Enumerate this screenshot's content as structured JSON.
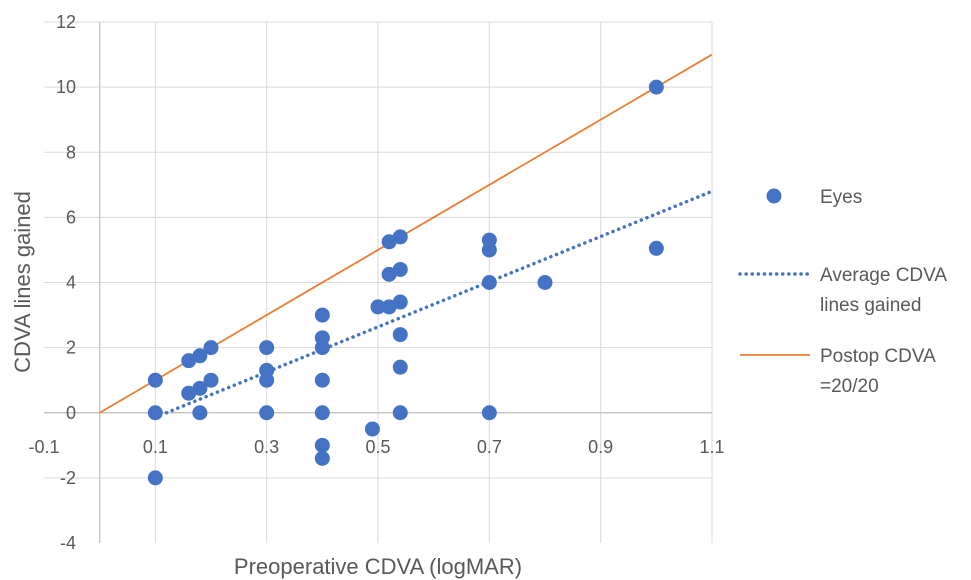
{
  "chart_data": {
    "type": "scatter",
    "xlabel": "Preoperative CDVA (logMAR)",
    "ylabel": "CDVA lines gained",
    "xlim": [
      -0.1,
      1.1
    ],
    "ylim": [
      -4,
      12
    ],
    "x_tick_labels": [
      "-0.1",
      "0.1",
      "0.3",
      "0.5",
      "0.7",
      "0.9",
      "1.1"
    ],
    "y_tick_labels": [
      "-4",
      "-2",
      "0",
      "2",
      "4",
      "6",
      "8",
      "10",
      "12"
    ],
    "x_gridlines": [
      0.1,
      0.3,
      0.5,
      0.7,
      0.9,
      1.1
    ],
    "y_gridlines": [
      -2,
      0,
      2,
      4,
      6,
      8,
      10,
      12
    ],
    "grid": true,
    "legend_position": "right",
    "series": [
      {
        "name": "Eyes",
        "kind": "scatter",
        "color": "#4472C4",
        "points": [
          [
            0.1,
            1
          ],
          [
            0.1,
            0
          ],
          [
            0.1,
            -2
          ],
          [
            0.16,
            1.6
          ],
          [
            0.16,
            0.6
          ],
          [
            0.18,
            1.75
          ],
          [
            0.18,
            0.75
          ],
          [
            0.18,
            0
          ],
          [
            0.2,
            2
          ],
          [
            0.2,
            1
          ],
          [
            0.3,
            2
          ],
          [
            0.3,
            1.3
          ],
          [
            0.3,
            1
          ],
          [
            0.3,
            0
          ],
          [
            0.4,
            3
          ],
          [
            0.4,
            2.3
          ],
          [
            0.4,
            2
          ],
          [
            0.4,
            1
          ],
          [
            0.4,
            0
          ],
          [
            0.4,
            -1
          ],
          [
            0.4,
            -1.4
          ],
          [
            0.49,
            -0.5
          ],
          [
            0.5,
            3.25
          ],
          [
            0.52,
            5.25
          ],
          [
            0.52,
            4.25
          ],
          [
            0.52,
            3.25
          ],
          [
            0.54,
            5.4
          ],
          [
            0.54,
            4.4
          ],
          [
            0.54,
            3.4
          ],
          [
            0.54,
            2.4
          ],
          [
            0.54,
            1.4
          ],
          [
            0.54,
            0
          ],
          [
            0.7,
            5.3
          ],
          [
            0.7,
            5
          ],
          [
            0.7,
            4
          ],
          [
            0.7,
            0
          ],
          [
            0.8,
            4
          ],
          [
            1.0,
            10
          ],
          [
            1.0,
            5.05
          ]
        ]
      },
      {
        "name": "Average CDVA lines gained",
        "legend_lines": [
          "Average CDVA",
          "lines gained"
        ],
        "kind": "line",
        "style": "dotted",
        "color": "#4472C4",
        "points": [
          [
            0.12,
            0
          ],
          [
            1.1,
            6.8
          ]
        ]
      },
      {
        "name": "Postop CDVA =20/20",
        "legend_lines": [
          "Postop CDVA",
          "=20/20"
        ],
        "kind": "line",
        "style": "solid",
        "color": "#ED7D31",
        "points": [
          [
            0.0,
            0
          ],
          [
            1.1,
            11
          ]
        ]
      }
    ]
  }
}
